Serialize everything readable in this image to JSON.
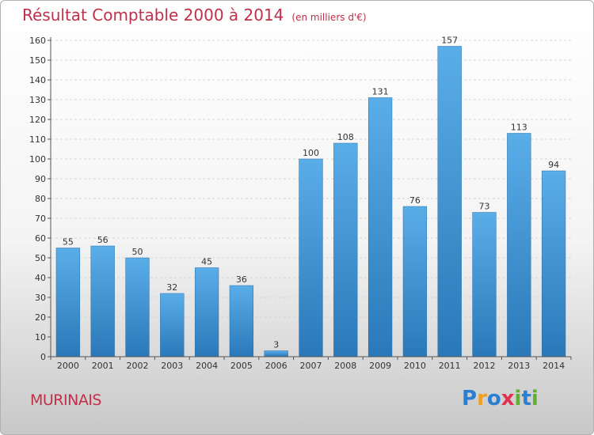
{
  "title": "Résultat Comptable 2000 à 2014",
  "subtitle": "(en milliers d'€)",
  "commune": "MURINAIS",
  "logo": {
    "text": "Proxiti",
    "letters": [
      "P",
      "r",
      "o",
      "x",
      "i",
      "t",
      "i"
    ],
    "colors": [
      "#2a7fd0",
      "#f0a020",
      "#2a7fd0",
      "#e03050",
      "#60b030",
      "#2a7fd0",
      "#60b030"
    ]
  },
  "chart_data": {
    "type": "bar",
    "categories": [
      "2000",
      "2001",
      "2002",
      "2003",
      "2004",
      "2005",
      "2006",
      "2007",
      "2008",
      "2009",
      "2010",
      "2011",
      "2012",
      "2013",
      "2014"
    ],
    "values": [
      55,
      56,
      50,
      32,
      45,
      36,
      3,
      100,
      108,
      131,
      76,
      157,
      73,
      113,
      94
    ],
    "ylim": [
      0,
      160
    ],
    "yticks": [
      0,
      10,
      20,
      30,
      40,
      50,
      60,
      70,
      80,
      90,
      100,
      110,
      120,
      130,
      140,
      150,
      160
    ],
    "grid": true,
    "bar_color_top": "#5aaee8",
    "bar_color_bottom": "#2a78b8"
  }
}
